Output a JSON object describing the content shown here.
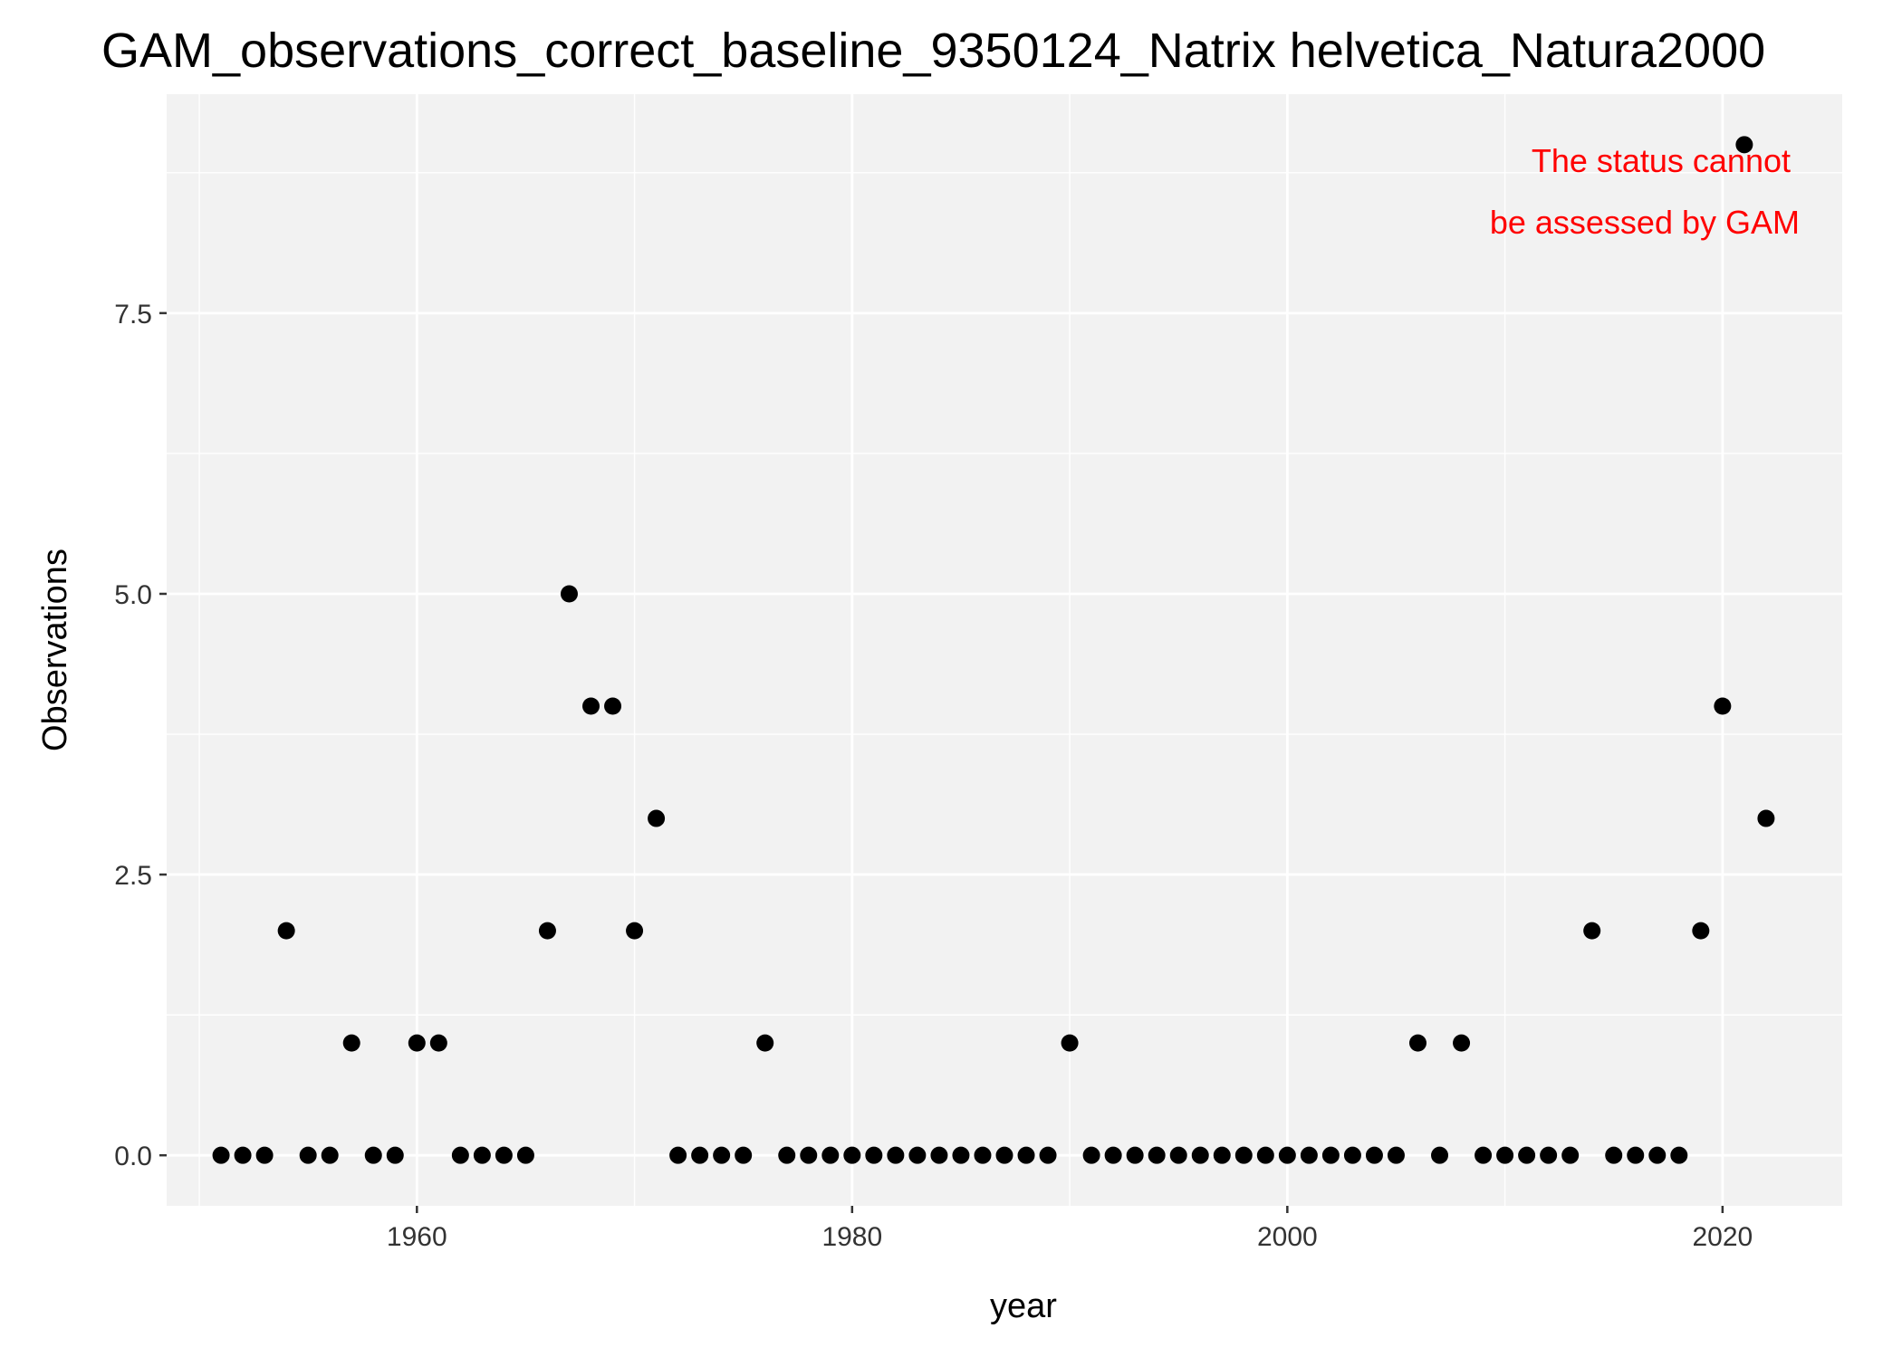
{
  "chart_data": {
    "type": "scatter",
    "title": "GAM_observations_correct_baseline_9350124_Natrix helvetica_Natura2000",
    "xlabel": "year",
    "ylabel": "Observations",
    "xlim": [
      1948.5,
      2025.5
    ],
    "ylim": [
      -0.45,
      9.45
    ],
    "x_ticks": [
      1960,
      1980,
      2000,
      2020
    ],
    "x_tick_labels": [
      "1960",
      "1980",
      "2000",
      "2020"
    ],
    "y_ticks": [
      0,
      2.5,
      5,
      7.5
    ],
    "y_tick_labels": [
      "0.0",
      "2.5",
      "5.0",
      "7.5"
    ],
    "grid": true,
    "panel_background": "#f2f2f2",
    "grid_color": "#ffffff",
    "point_color": "#000000",
    "annotation": {
      "lines": [
        "The status cannot",
        "be assessed by GAM"
      ],
      "color": "#ff0000",
      "position": "top-right"
    },
    "x": [
      1951,
      1952,
      1953,
      1954,
      1955,
      1956,
      1957,
      1958,
      1959,
      1960,
      1961,
      1962,
      1963,
      1964,
      1965,
      1966,
      1967,
      1968,
      1969,
      1970,
      1971,
      1972,
      1973,
      1974,
      1975,
      1976,
      1977,
      1978,
      1979,
      1980,
      1981,
      1982,
      1983,
      1984,
      1985,
      1986,
      1987,
      1988,
      1989,
      1990,
      1991,
      1992,
      1993,
      1994,
      1995,
      1996,
      1997,
      1998,
      1999,
      2000,
      2001,
      2002,
      2003,
      2004,
      2005,
      2006,
      2007,
      2008,
      2009,
      2010,
      2011,
      2012,
      2013,
      2014,
      2015,
      2016,
      2017,
      2018,
      2019,
      2020,
      2021,
      2022
    ],
    "y": [
      0,
      0,
      0,
      2,
      0,
      0,
      1,
      0,
      0,
      1,
      1,
      0,
      0,
      0,
      0,
      2,
      5,
      4,
      4,
      2,
      3,
      0,
      0,
      0,
      0,
      1,
      0,
      0,
      0,
      0,
      0,
      0,
      0,
      0,
      0,
      0,
      0,
      0,
      0,
      1,
      0,
      0,
      0,
      0,
      0,
      0,
      0,
      0,
      0,
      0,
      0,
      0,
      0,
      0,
      0,
      1,
      0,
      1,
      0,
      0,
      0,
      0,
      0,
      2,
      0,
      0,
      0,
      0,
      2,
      4,
      9,
      3
    ]
  }
}
